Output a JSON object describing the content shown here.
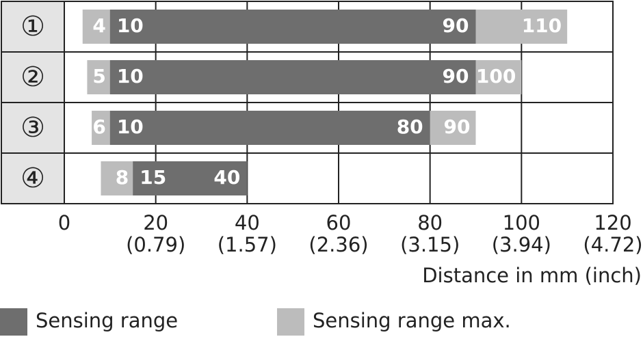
{
  "chart_data": {
    "type": "range_bar",
    "categories": [
      "①",
      "②",
      "③",
      "④"
    ],
    "series": [
      {
        "name": "Sensing range max.",
        "color": "#bcbcbc",
        "low": [
          4,
          5,
          6,
          8
        ],
        "high": [
          110,
          100,
          90,
          40
        ]
      },
      {
        "name": "Sensing range",
        "color": "#6e6e6e",
        "low": [
          10,
          10,
          10,
          15
        ],
        "high": [
          90,
          90,
          80,
          40
        ]
      }
    ],
    "xlim": [
      0,
      120
    ],
    "xticks": [
      0,
      20,
      40,
      60,
      80,
      100,
      120
    ],
    "xtick_inch_labels": [
      null,
      "(0.79)",
      "(1.57)",
      "(2.36)",
      "(3.15)",
      "(3.94)",
      "(4.72)"
    ],
    "xlabel": "Distance in mm (inch)",
    "grid": true,
    "legend_order": [
      1,
      0
    ]
  }
}
